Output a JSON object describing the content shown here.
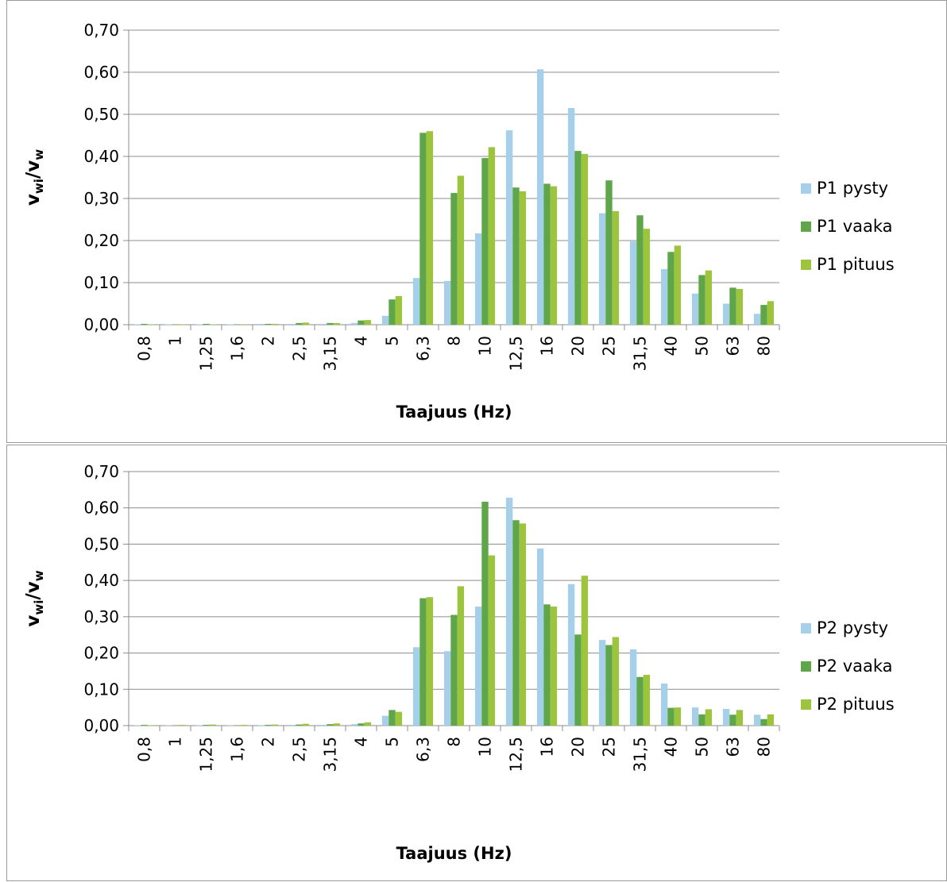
{
  "colors": {
    "pysty": "#a6cfea",
    "vaaka": "#5ea649",
    "pituus": "#9cc43d",
    "grid": "#8c8c8c"
  },
  "chart_data": [
    {
      "type": "bar",
      "title": "",
      "xlabel": "Taajuus (Hz)",
      "ylabel_main": "v",
      "ylabel_sub1": "wi",
      "ylabel_mid": "/v",
      "ylabel_sub2": "w",
      "ylim": [
        0,
        0.7
      ],
      "yticks": [
        "0,00",
        "0,10",
        "0,20",
        "0,30",
        "0,40",
        "0,50",
        "0,60",
        "0,70"
      ],
      "categories": [
        "0,8",
        "1",
        "1,25",
        "1,6",
        "2",
        "2,5",
        "3,15",
        "4",
        "5",
        "6,3",
        "8",
        "10",
        "12,5",
        "16",
        "20",
        "25",
        "31,5",
        "40",
        "50",
        "63",
        "80"
      ],
      "legend_position": "right",
      "series": [
        {
          "name": "P1 pysty",
          "values": [
            0.001,
            0.001,
            0.001,
            0.001,
            0.002,
            0.002,
            0.002,
            0.004,
            0.021,
            0.111,
            0.104,
            0.217,
            0.462,
            0.607,
            0.515,
            0.265,
            0.198,
            0.132,
            0.074,
            0.05,
            0.026
          ]
        },
        {
          "name": "P1 vaaka",
          "values": [
            0.002,
            0.001,
            0.002,
            0.001,
            0.002,
            0.004,
            0.004,
            0.01,
            0.06,
            0.456,
            0.313,
            0.396,
            0.326,
            0.335,
            0.413,
            0.343,
            0.26,
            0.173,
            0.118,
            0.088,
            0.047
          ]
        },
        {
          "name": "P1 pituus",
          "values": [
            0.001,
            0.001,
            0.001,
            0.001,
            0.002,
            0.005,
            0.004,
            0.011,
            0.068,
            0.46,
            0.354,
            0.422,
            0.317,
            0.329,
            0.406,
            0.27,
            0.228,
            0.188,
            0.129,
            0.085,
            0.056
          ]
        }
      ]
    },
    {
      "type": "bar",
      "title": "",
      "xlabel": "Taajuus (Hz)",
      "ylabel_main": "v",
      "ylabel_sub1": "wi",
      "ylabel_mid": "/v",
      "ylabel_sub2": "w",
      "ylim": [
        0,
        0.7
      ],
      "yticks": [
        "0,00",
        "0,10",
        "0,20",
        "0,30",
        "0,40",
        "0,50",
        "0,60",
        "0,70"
      ],
      "categories": [
        "0,8",
        "1",
        "1,25",
        "1,6",
        "2",
        "2,5",
        "3,15",
        "4",
        "5",
        "6,3",
        "8",
        "10",
        "12,5",
        "16",
        "20",
        "25",
        "31,5",
        "40",
        "50",
        "63",
        "80"
      ],
      "legend_position": "right",
      "series": [
        {
          "name": "P2 pysty",
          "values": [
            0.001,
            0.001,
            0.001,
            0.001,
            0.001,
            0.002,
            0.002,
            0.004,
            0.027,
            0.216,
            0.205,
            0.328,
            0.628,
            0.488,
            0.39,
            0.236,
            0.21,
            0.116,
            0.05,
            0.046,
            0.03
          ]
        },
        {
          "name": "P2 vaaka",
          "values": [
            0.002,
            0.001,
            0.002,
            0.001,
            0.002,
            0.003,
            0.004,
            0.006,
            0.043,
            0.351,
            0.305,
            0.617,
            0.566,
            0.334,
            0.251,
            0.222,
            0.134,
            0.049,
            0.031,
            0.03,
            0.018
          ]
        },
        {
          "name": "P2 pituus",
          "values": [
            0.001,
            0.002,
            0.003,
            0.002,
            0.003,
            0.005,
            0.006,
            0.009,
            0.038,
            0.354,
            0.384,
            0.469,
            0.557,
            0.328,
            0.413,
            0.244,
            0.14,
            0.05,
            0.045,
            0.043,
            0.031
          ]
        }
      ]
    }
  ]
}
